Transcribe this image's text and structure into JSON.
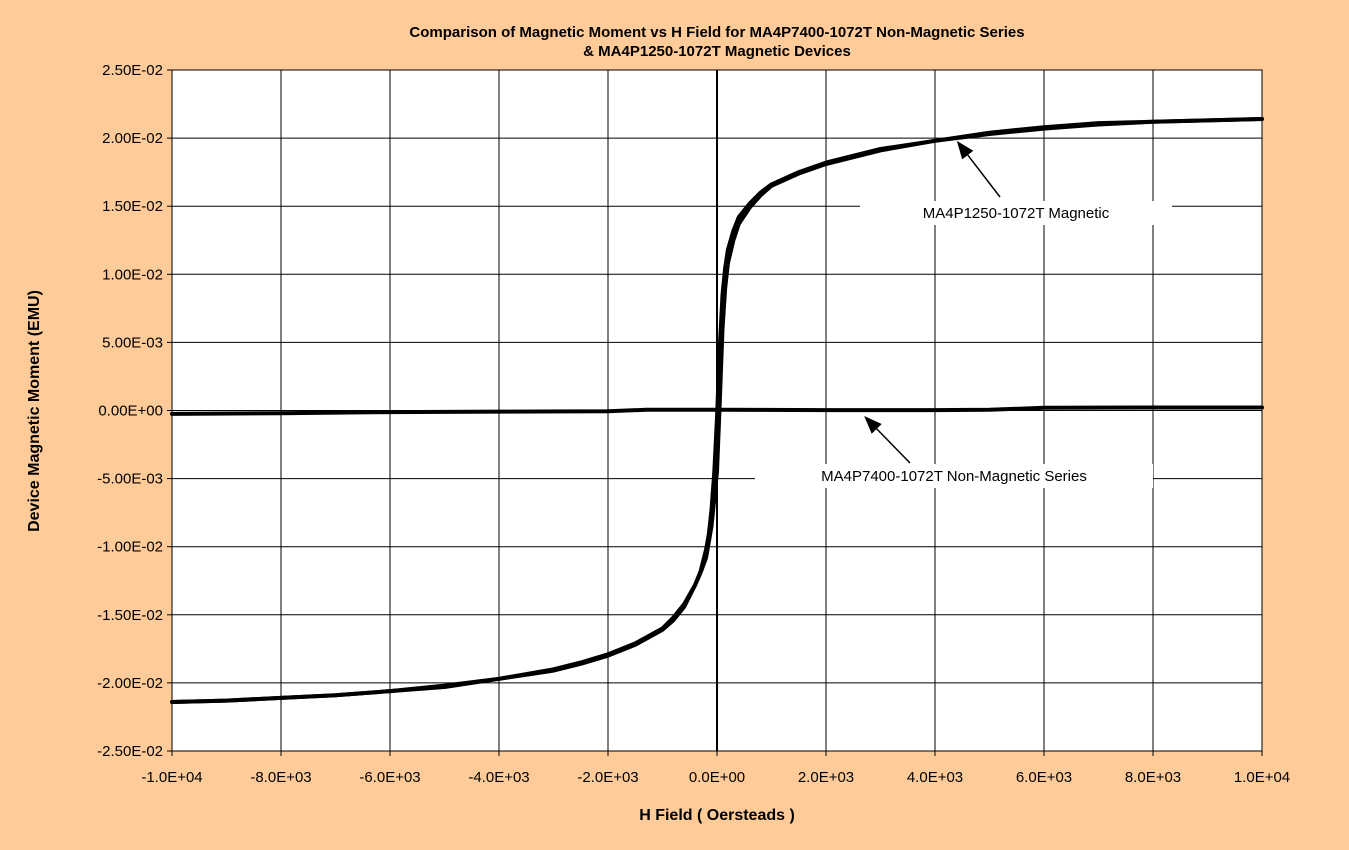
{
  "chart_data": {
    "type": "line",
    "title_line1": "Comparison of Magnetic Moment vs H Field for MA4P7400-1072T Non-Magnetic Series",
    "title_line2": "& MA4P1250-1072T Magnetic Devices",
    "xlabel": "H Field ( Oersteads )",
    "ylabel": "Device Magnetic Moment (EMU)",
    "xlim": [
      -10000,
      10000
    ],
    "ylim": [
      -0.025,
      0.025
    ],
    "x_ticks": [
      -10000,
      -8000,
      -6000,
      -4000,
      -2000,
      0,
      2000,
      4000,
      6000,
      8000,
      10000
    ],
    "x_tick_labels": [
      "-1.0E+04",
      "-8.0E+03",
      "-6.0E+03",
      "-4.0E+03",
      "-2.0E+03",
      "0.0E+00",
      "2.0E+03",
      "4.0E+03",
      "6.0E+03",
      "8.0E+03",
      "1.0E+04"
    ],
    "y_ticks": [
      0.025,
      0.02,
      0.015,
      0.01,
      0.005,
      0,
      -0.005,
      -0.01,
      -0.015,
      -0.02,
      -0.025
    ],
    "y_tick_labels": [
      "2.50E-02",
      "2.00E-02",
      "1.50E-02",
      "1.00E-02",
      "5.00E-03",
      "0.00E+00",
      "-5.00E-03",
      "-1.00E-02",
      "-1.50E-02",
      "-2.00E-02",
      "-2.50E-02"
    ],
    "grid": true,
    "background_color": "#FFCC99",
    "plot_background_color": "#FFFFFF",
    "line_color": "#000000",
    "series": [
      {
        "name": "MA4P1250-1072T Magnetic",
        "branches": [
          {
            "x": [
              -10000,
              -9000,
              -8000,
              -7000,
              -6000,
              -5000,
              -4000,
              -3000,
              -2500,
              -2000,
              -1500,
              -1000,
              -800,
              -600,
              -400,
              -300,
              -200,
              -150,
              -100,
              -50,
              0,
              50,
              100,
              150,
              200,
              300,
              400,
              600,
              800,
              1000,
              1500,
              2000,
              3000,
              4000,
              5000,
              6000,
              7000,
              8000,
              9000,
              10000
            ],
            "y": [
              -0.0214,
              -0.0213,
              -0.0211,
              -0.0209,
              -0.0206,
              -0.0203,
              -0.0197,
              -0.0191,
              -0.0186,
              -0.018,
              -0.0172,
              -0.0161,
              -0.0154,
              -0.0144,
              -0.0128,
              -0.0118,
              -0.0102,
              -0.0091,
              -0.0073,
              -0.0045,
              -0.0005,
              0.0045,
              0.0085,
              0.0105,
              0.0118,
              0.0132,
              0.0142,
              0.0152,
              0.016,
              0.0166,
              0.0175,
              0.0182,
              0.0192,
              0.0198,
              0.0204,
              0.0208,
              0.0211,
              0.0212,
              0.0213,
              0.0214
            ]
          },
          {
            "x": [
              -10000,
              -9000,
              -8000,
              -7000,
              -6000,
              -5000,
              -4000,
              -3000,
              -2500,
              -2000,
              -1500,
              -1000,
              -800,
              -600,
              -400,
              -300,
              -200,
              -100,
              0,
              50,
              100,
              150,
              200,
              300,
              400,
              600,
              800,
              1000,
              1500,
              2000,
              3000,
              4000,
              5000,
              6000,
              7000,
              8000,
              9000,
              10000
            ],
            "y": [
              -0.0214,
              -0.0213,
              -0.0211,
              -0.0209,
              -0.0206,
              -0.0202,
              -0.0197,
              -0.019,
              -0.0185,
              -0.0179,
              -0.0171,
              -0.016,
              -0.0152,
              -0.0142,
              -0.0128,
              -0.0119,
              -0.0108,
              -0.0085,
              -0.0045,
              0.0005,
              0.006,
              0.009,
              0.0108,
              0.0125,
              0.0137,
              0.0149,
              0.0158,
              0.0165,
              0.0174,
              0.0181,
              0.0191,
              0.0198,
              0.0203,
              0.0207,
              0.021,
              0.0212,
              0.0213,
              0.0214
            ]
          }
        ]
      },
      {
        "name": "MA4P7400-1072T Non-Magnetic Series",
        "branches": [
          {
            "x": [
              -10000,
              -8000,
              -6000,
              -4000,
              -2000,
              -1300,
              0,
              2000,
              4000,
              5000,
              6000,
              8000,
              10000
            ],
            "y": [
              -0.00025,
              -0.0002,
              -0.00012,
              -8e-05,
              -5e-05,
              5e-05,
              5e-05,
              3e-05,
              3e-05,
              5e-05,
              0.0002,
              0.00022,
              0.00022
            ]
          }
        ]
      }
    ],
    "annotations": [
      {
        "text": "MA4P1250-1072T Magnetic",
        "arrow_to": [
          4400,
          0.0198
        ]
      },
      {
        "text": "MA4P7400-1072T Non-Magnetic Series",
        "arrow_to": [
          2700,
          -0.0004
        ]
      }
    ]
  }
}
